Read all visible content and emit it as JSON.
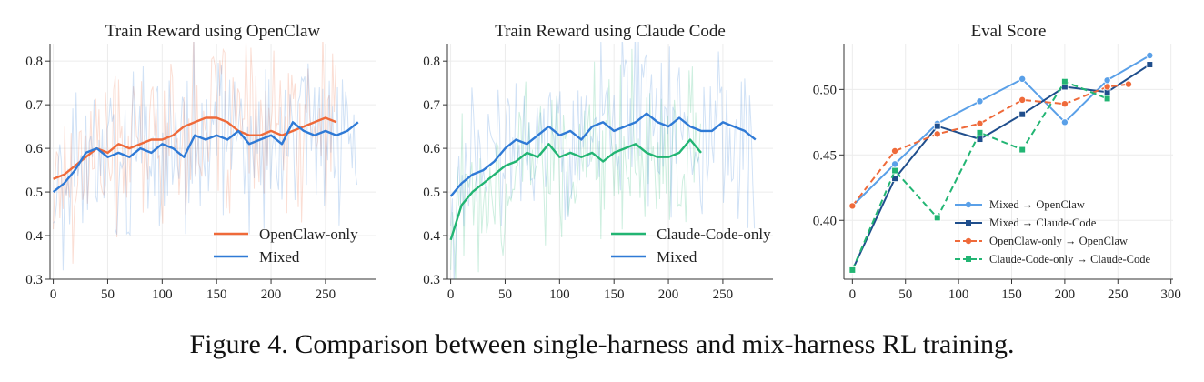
{
  "caption": "Figure 4. Comparison between single-harness and mix-harness RL training.",
  "colors": {
    "openclaw": "#ef6a3a",
    "mixed": "#2f7ad6",
    "claude": "#22b573",
    "mixed_light": "#5aa0e8",
    "mixed_dark": "#1f4e8c"
  },
  "chart_data": [
    {
      "type": "line",
      "title": "Train Reward using OpenClaw",
      "xlim": [
        -3,
        296
      ],
      "ylim": [
        0.3,
        0.84
      ],
      "xticks": [
        "0",
        "50",
        "100",
        "150",
        "200",
        "250"
      ],
      "yticks": [
        "0.3",
        "0.4",
        "0.5",
        "0.6",
        "0.7",
        "0.8"
      ],
      "grid": true,
      "legend": "lower-right",
      "series": [
        {
          "name": "OpenClaw-only",
          "color": "#ef6a3a",
          "x": [
            0,
            10,
            20,
            30,
            40,
            50,
            60,
            70,
            80,
            90,
            100,
            110,
            120,
            130,
            140,
            150,
            160,
            170,
            180,
            190,
            200,
            210,
            220,
            230,
            240,
            250,
            260
          ],
          "y": [
            0.53,
            0.54,
            0.56,
            0.58,
            0.6,
            0.59,
            0.61,
            0.6,
            0.61,
            0.62,
            0.62,
            0.63,
            0.65,
            0.66,
            0.67,
            0.67,
            0.66,
            0.64,
            0.63,
            0.63,
            0.64,
            0.63,
            0.64,
            0.65,
            0.66,
            0.67,
            0.66
          ]
        },
        {
          "name": "Mixed",
          "color": "#2f7ad6",
          "x": [
            0,
            10,
            20,
            30,
            40,
            50,
            60,
            70,
            80,
            90,
            100,
            110,
            120,
            130,
            140,
            150,
            160,
            170,
            180,
            190,
            200,
            210,
            220,
            230,
            240,
            250,
            260,
            270,
            280
          ],
          "y": [
            0.5,
            0.52,
            0.55,
            0.59,
            0.6,
            0.58,
            0.59,
            0.58,
            0.6,
            0.59,
            0.61,
            0.6,
            0.58,
            0.63,
            0.62,
            0.63,
            0.62,
            0.64,
            0.61,
            0.62,
            0.63,
            0.61,
            0.66,
            0.64,
            0.63,
            0.64,
            0.63,
            0.64,
            0.66
          ]
        }
      ]
    },
    {
      "type": "line",
      "title": "Train Reward using Claude Code",
      "xlim": [
        -3,
        296
      ],
      "ylim": [
        0.3,
        0.84
      ],
      "xticks": [
        "0",
        "50",
        "100",
        "150",
        "200",
        "250"
      ],
      "yticks": [
        "0.3",
        "0.4",
        "0.5",
        "0.6",
        "0.7",
        "0.8"
      ],
      "grid": true,
      "legend": "lower-right",
      "series": [
        {
          "name": "Claude-Code-only",
          "color": "#22b573",
          "x": [
            0,
            10,
            20,
            30,
            40,
            50,
            60,
            70,
            80,
            90,
            100,
            110,
            120,
            130,
            140,
            150,
            160,
            170,
            180,
            190,
            200,
            210,
            220,
            230
          ],
          "y": [
            0.39,
            0.47,
            0.5,
            0.52,
            0.54,
            0.56,
            0.57,
            0.59,
            0.58,
            0.61,
            0.58,
            0.59,
            0.58,
            0.59,
            0.57,
            0.59,
            0.6,
            0.61,
            0.59,
            0.58,
            0.58,
            0.59,
            0.62,
            0.59
          ]
        },
        {
          "name": "Mixed",
          "color": "#2f7ad6",
          "x": [
            0,
            10,
            20,
            30,
            40,
            50,
            60,
            70,
            80,
            90,
            100,
            110,
            120,
            130,
            140,
            150,
            160,
            170,
            180,
            190,
            200,
            210,
            220,
            230,
            240,
            250,
            260,
            270,
            280
          ],
          "y": [
            0.49,
            0.52,
            0.54,
            0.55,
            0.57,
            0.6,
            0.62,
            0.61,
            0.63,
            0.65,
            0.63,
            0.64,
            0.62,
            0.65,
            0.66,
            0.64,
            0.65,
            0.66,
            0.68,
            0.66,
            0.65,
            0.67,
            0.65,
            0.64,
            0.64,
            0.66,
            0.65,
            0.64,
            0.62
          ]
        }
      ]
    },
    {
      "type": "line",
      "title": "Eval Score",
      "xlim": [
        -8,
        302
      ],
      "ylim": [
        0.355,
        0.535
      ],
      "xticks": [
        "0",
        "50",
        "100",
        "150",
        "200",
        "250",
        "300"
      ],
      "yticks": [
        "0.40",
        "0.45",
        "0.50"
      ],
      "grid": true,
      "legend": "lower-right",
      "series": [
        {
          "name": "Mixed → OpenClaw",
          "color": "#5aa0e8",
          "marker": "circle",
          "dash": false,
          "x": [
            0,
            40,
            80,
            120,
            160,
            200,
            240,
            280
          ],
          "y": [
            0.411,
            0.443,
            0.474,
            0.491,
            0.508,
            0.475,
            0.507,
            0.526
          ]
        },
        {
          "name": "Mixed → Claude-Code",
          "color": "#1f4e8c",
          "marker": "square",
          "dash": false,
          "x": [
            0,
            40,
            80,
            120,
            160,
            200,
            240,
            280
          ],
          "y": [
            0.362,
            0.432,
            0.472,
            0.462,
            0.481,
            0.502,
            0.498,
            0.519
          ]
        },
        {
          "name": "OpenClaw-only → OpenClaw",
          "color": "#ef6a3a",
          "marker": "circle",
          "dash": true,
          "x": [
            0,
            40,
            80,
            120,
            160,
            200,
            240,
            260
          ],
          "y": [
            0.411,
            0.453,
            0.466,
            0.474,
            0.492,
            0.489,
            0.502,
            0.504
          ]
        },
        {
          "name": "Claude-Code-only → Claude-Code",
          "color": "#22b573",
          "marker": "square",
          "dash": true,
          "x": [
            0,
            40,
            80,
            120,
            160,
            200,
            240
          ],
          "y": [
            0.362,
            0.438,
            0.402,
            0.467,
            0.454,
            0.506,
            0.493
          ]
        }
      ]
    }
  ]
}
